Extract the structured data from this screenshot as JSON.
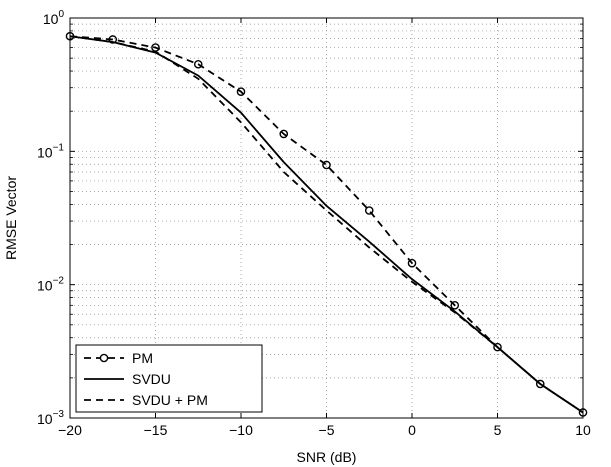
{
  "chart_data": {
    "type": "line",
    "xlabel": "SNR (dB)",
    "ylabel": "RMSE Vector",
    "xlim": [
      -20,
      10
    ],
    "ylim": [
      0.001,
      1
    ],
    "yscale": "log",
    "grid": true,
    "legend_position": "bottom-left",
    "x_ticks": [
      "−20",
      "−15",
      "−10",
      "−5",
      "0",
      "5",
      "10"
    ],
    "x_tick_values": [
      -20,
      -15,
      -10,
      -5,
      0,
      5,
      10
    ],
    "y_ticks": [
      {
        "base": "10",
        "exp": "−3",
        "value": 0.001
      },
      {
        "base": "10",
        "exp": "−2",
        "value": 0.01
      },
      {
        "base": "10",
        "exp": "−1",
        "value": 0.1
      },
      {
        "base": "10",
        "exp": "0",
        "value": 1
      }
    ],
    "series": [
      {
        "name": "PM",
        "style": "dashed-circle-markers",
        "x": [
          -20,
          -17.5,
          -15,
          -12.5,
          -10,
          -7.5,
          -5,
          -2.5,
          0,
          2.5,
          5,
          7.5,
          10
        ],
        "y": [
          0.73,
          0.69,
          0.6,
          0.45,
          0.28,
          0.135,
          0.079,
          0.036,
          0.0145,
          0.007,
          0.0034,
          0.0018,
          0.0011
        ]
      },
      {
        "name": "SVDU",
        "style": "solid",
        "x": [
          -20,
          -17.5,
          -15,
          -12.5,
          -10,
          -7.5,
          -5,
          -2.5,
          0,
          2.5,
          5,
          7.5,
          10
        ],
        "y": [
          0.73,
          0.66,
          0.55,
          0.37,
          0.195,
          0.083,
          0.039,
          0.021,
          0.011,
          0.0063,
          0.0034,
          0.0018,
          0.0011
        ]
      },
      {
        "name": "SVDU + PM",
        "style": "dashed",
        "x": [
          -20,
          -17.5,
          -15,
          -12.5,
          -10,
          -7.5,
          -5,
          -2.5,
          0,
          2.5,
          5,
          7.5,
          10
        ],
        "y": [
          0.73,
          0.66,
          0.56,
          0.35,
          0.165,
          0.07,
          0.036,
          0.019,
          0.0105,
          0.0062,
          0.0034,
          0.0018,
          0.0011
        ]
      }
    ]
  }
}
